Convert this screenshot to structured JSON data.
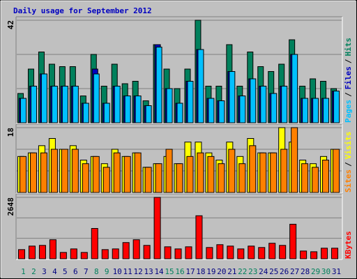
{
  "title": "Daily usage for September 2012",
  "title_color": "#0000c0",
  "chart_data": [
    {
      "type": "bar",
      "ylim": [
        0,
        42
      ],
      "gridlines": [
        14,
        28
      ],
      "legend_separator": "/",
      "series": [
        {
          "name": "Hits",
          "color": "#00805c",
          "values": [
            12,
            22,
            29,
            24,
            23,
            23,
            11,
            28,
            15,
            24,
            16,
            17,
            9,
            32,
            22,
            14,
            22,
            42,
            15,
            15,
            32,
            15,
            29,
            23,
            21,
            24,
            34,
            15,
            18,
            17,
            14
          ]
        },
        {
          "name": "Files",
          "color": "#0000c0",
          "values": [
            10,
            15,
            20,
            15,
            15,
            15,
            8,
            22,
            8,
            15,
            11,
            11,
            7,
            32,
            14,
            8,
            17,
            30,
            10,
            9,
            21,
            11,
            18,
            15,
            12,
            15,
            28,
            10,
            10,
            10,
            13
          ]
        },
        {
          "name": "Pages",
          "color": "#00c0ff",
          "values": [
            10,
            15,
            20,
            15,
            15,
            15,
            8,
            20,
            8,
            15,
            11,
            11,
            7,
            31,
            14,
            8,
            17,
            30,
            10,
            9,
            21,
            11,
            18,
            15,
            12,
            15,
            28,
            10,
            10,
            10,
            13
          ]
        }
      ]
    },
    {
      "type": "bar",
      "ylim": [
        0,
        18
      ],
      "gridlines": [
        6,
        12
      ],
      "legend_separator": "/",
      "series": [
        {
          "name": "Visits",
          "color": "#ffff00",
          "values": [
            10,
            11,
            13,
            15,
            12,
            13,
            9,
            10,
            8,
            12,
            10,
            11,
            7,
            8,
            10,
            8,
            14,
            14,
            11,
            9,
            14,
            10,
            15,
            11,
            11,
            18,
            14,
            9,
            8,
            10,
            12
          ]
        },
        {
          "name": "Sites",
          "color": "#ff8000",
          "values": [
            10,
            11,
            11,
            12,
            12,
            12,
            8,
            10,
            7,
            11,
            10,
            11,
            7,
            8,
            12,
            8,
            10,
            11,
            10,
            8,
            12,
            8,
            13,
            11,
            11,
            12,
            18,
            8,
            7,
            9,
            12
          ]
        }
      ]
    },
    {
      "type": "bar",
      "ylim": [
        0,
        2648
      ],
      "gridlines": [
        883,
        1765
      ],
      "categories": [
        "1",
        "2",
        "3",
        "4",
        "5",
        "6",
        "7",
        "8",
        "9",
        "10",
        "11",
        "12",
        "13",
        "14",
        "15",
        "16",
        "17",
        "18",
        "19",
        "20",
        "21",
        "22",
        "23",
        "24",
        "25",
        "26",
        "27",
        "28",
        "29",
        "30",
        "31"
      ],
      "category_colors": [
        "#00805c",
        "#00805c",
        "#000080",
        "#000080",
        "#000080",
        "#000080",
        "#000080",
        "#00805c",
        "#00805c",
        "#000080",
        "#000080",
        "#000080",
        "#000080",
        "#000080",
        "#00805c",
        "#00805c",
        "#000080",
        "#000080",
        "#000080",
        "#000080",
        "#000080",
        "#00805c",
        "#00805c",
        "#000080",
        "#000080",
        "#000080",
        "#000080",
        "#000080",
        "#00805c",
        "#00805c",
        "#000080"
      ],
      "series": [
        {
          "name": "KBytes",
          "color": "#ff0000",
          "values": [
            396,
            548,
            578,
            822,
            274,
            426,
            274,
            1309,
            396,
            426,
            700,
            822,
            578,
            2648,
            517,
            426,
            517,
            1857,
            487,
            609,
            548,
            426,
            548,
            487,
            670,
            578,
            1491,
            335,
            304,
            457,
            457
          ]
        }
      ]
    }
  ]
}
